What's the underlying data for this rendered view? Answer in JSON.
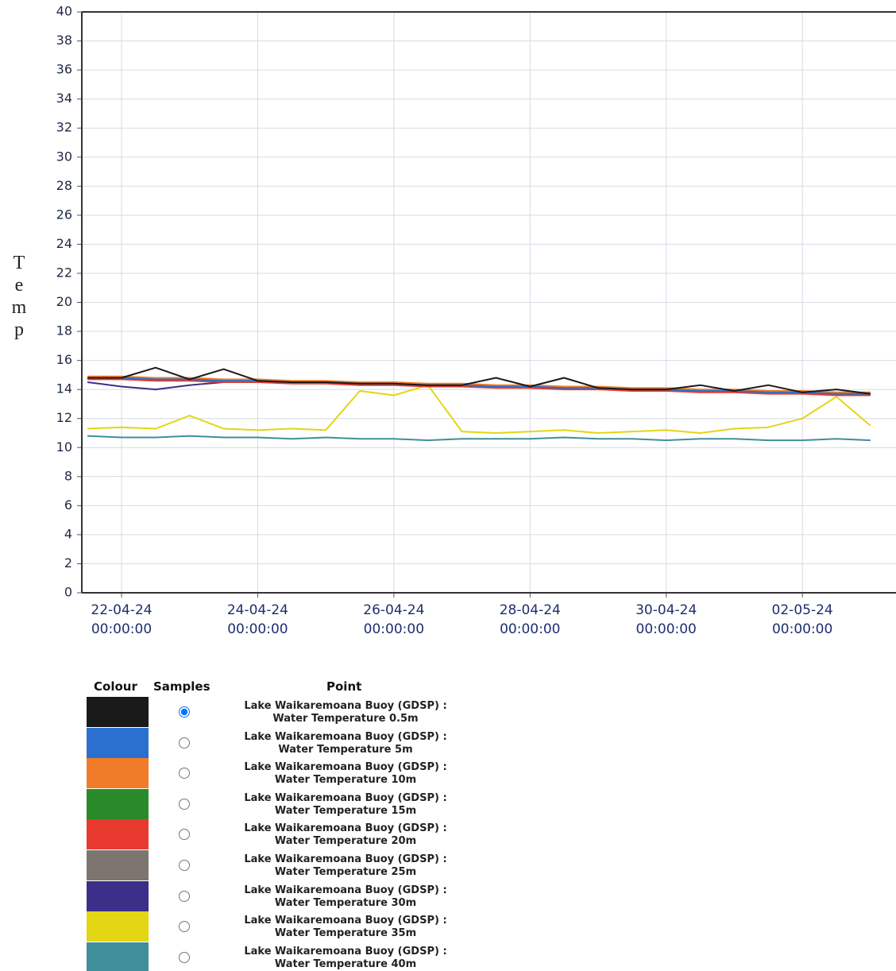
{
  "chart_data": {
    "type": "line",
    "ylabel": "Temp",
    "x": [
      "21-04-24 12:00:00",
      "22-04-24 00:00:00",
      "22-04-24 12:00:00",
      "23-04-24 00:00:00",
      "23-04-24 12:00:00",
      "24-04-24 00:00:00",
      "24-04-24 12:00:00",
      "25-04-24 00:00:00",
      "25-04-24 12:00:00",
      "26-04-24 00:00:00",
      "26-04-24 12:00:00",
      "27-04-24 00:00:00",
      "27-04-24 12:00:00",
      "28-04-24 00:00:00",
      "28-04-24 12:00:00",
      "29-04-24 00:00:00",
      "29-04-24 12:00:00",
      "30-04-24 00:00:00",
      "30-04-24 12:00:00",
      "01-05-24 00:00:00",
      "01-05-24 12:00:00",
      "02-05-24 00:00:00",
      "02-05-24 12:00:00",
      "03-05-24 00:00:00"
    ],
    "series": [
      {
        "name": "Lake Waikaremoana Buoy (GDSP) : Water Temperature 0.5m",
        "color": "#1a1a1a",
        "values": [
          14.8,
          14.8,
          15.5,
          14.7,
          15.4,
          14.6,
          14.5,
          14.5,
          14.4,
          14.4,
          14.3,
          14.3,
          14.8,
          14.2,
          14.8,
          14.1,
          14.0,
          14.0,
          14.3,
          13.9,
          14.3,
          13.8,
          14.0,
          13.7
        ]
      },
      {
        "name": "Lake Waikaremoana Buoy (GDSP) : Water Temperature 5m",
        "color": "#2b6fcf",
        "values": [
          14.8,
          14.8,
          14.7,
          14.7,
          14.6,
          14.6,
          14.5,
          14.5,
          14.4,
          14.4,
          14.3,
          14.3,
          14.2,
          14.2,
          14.1,
          14.1,
          14.0,
          14.0,
          13.9,
          13.9,
          13.8,
          13.8,
          13.7,
          13.7
        ]
      },
      {
        "name": "Lake Waikaremoana Buoy (GDSP) : Water Temperature 10m",
        "color": "#f07c2a",
        "values": [
          14.9,
          14.9,
          14.8,
          14.8,
          14.7,
          14.7,
          14.6,
          14.6,
          14.5,
          14.5,
          14.4,
          14.4,
          14.3,
          14.3,
          14.2,
          14.2,
          14.1,
          14.1,
          14.0,
          14.0,
          13.9,
          13.9,
          13.8,
          13.8
        ]
      },
      {
        "name": "Lake Waikaremoana Buoy (GDSP) : Water Temperature 15m",
        "color": "#2a8a2a",
        "values": [
          14.8,
          14.8,
          14.7,
          14.7,
          14.6,
          14.6,
          14.5,
          14.5,
          14.4,
          14.4,
          14.3,
          14.3,
          14.2,
          14.2,
          14.1,
          14.1,
          14.0,
          14.0,
          13.9,
          13.9,
          13.8,
          13.8,
          13.7,
          13.7
        ]
      },
      {
        "name": "Lake Waikaremoana Buoy (GDSP) : Water Temperature 20m",
        "color": "#e83a2e",
        "values": [
          14.7,
          14.7,
          14.6,
          14.6,
          14.5,
          14.5,
          14.4,
          14.4,
          14.3,
          14.3,
          14.2,
          14.2,
          14.1,
          14.1,
          14.0,
          14.0,
          13.9,
          13.9,
          13.8,
          13.8,
          13.7,
          13.7,
          13.6,
          13.6
        ]
      },
      {
        "name": "Lake Waikaremoana Buoy (GDSP) : Water Temperature 25m",
        "color": "#7d7570",
        "values": [
          14.8,
          14.8,
          14.7,
          14.7,
          14.6,
          14.6,
          14.5,
          14.5,
          14.4,
          14.4,
          14.3,
          14.3,
          14.2,
          14.2,
          14.1,
          14.1,
          14.0,
          14.0,
          13.9,
          13.9,
          13.8,
          13.8,
          13.7,
          13.7
        ]
      },
      {
        "name": "Lake Waikaremoana Buoy (GDSP) : Water Temperature 30m",
        "color": "#3b2f8a",
        "values": [
          14.5,
          14.2,
          14.0,
          14.3,
          14.5,
          14.6,
          14.5,
          14.5,
          14.4,
          14.4,
          14.3,
          14.3,
          14.2,
          14.2,
          14.1,
          14.1,
          14.0,
          14.0,
          13.9,
          13.9,
          13.8,
          13.8,
          13.7,
          13.7
        ]
      },
      {
        "name": "Lake Waikaremoana Buoy (GDSP) : Water Temperature 35m",
        "color": "#e3d614",
        "values": [
          11.3,
          11.4,
          11.3,
          12.2,
          11.3,
          11.2,
          11.3,
          11.2,
          13.9,
          13.6,
          14.3,
          11.1,
          11.0,
          11.1,
          11.2,
          11.0,
          11.1,
          11.2,
          11.0,
          11.3,
          11.4,
          12.0,
          13.5,
          11.5
        ]
      },
      {
        "name": "Lake Waikaremoana Buoy (GDSP) : Water Temperature 40m",
        "color": "#3f8f9a",
        "values": [
          10.8,
          10.7,
          10.7,
          10.8,
          10.7,
          10.7,
          10.6,
          10.7,
          10.6,
          10.6,
          10.5,
          10.6,
          10.6,
          10.6,
          10.7,
          10.6,
          10.6,
          10.5,
          10.6,
          10.6,
          10.5,
          10.5,
          10.6,
          10.5
        ]
      }
    ],
    "xlim": [
      "21-04-24 10:00:00",
      "03-05-24 09:00:00"
    ],
    "xticks": [
      "22-04-24 00:00:00",
      "24-04-24 00:00:00",
      "26-04-24 00:00:00",
      "28-04-24 00:00:00",
      "30-04-24 00:00:00",
      "02-05-24 00:00:00"
    ],
    "ylim": [
      0,
      40
    ],
    "yticks": [
      0,
      2,
      4,
      6,
      8,
      10,
      12,
      14,
      16,
      18,
      20,
      22,
      24,
      26,
      28,
      30,
      32,
      34,
      36,
      38,
      40
    ],
    "grid": true,
    "legend_headers": [
      "Colour",
      "Samples",
      "Point"
    ]
  }
}
